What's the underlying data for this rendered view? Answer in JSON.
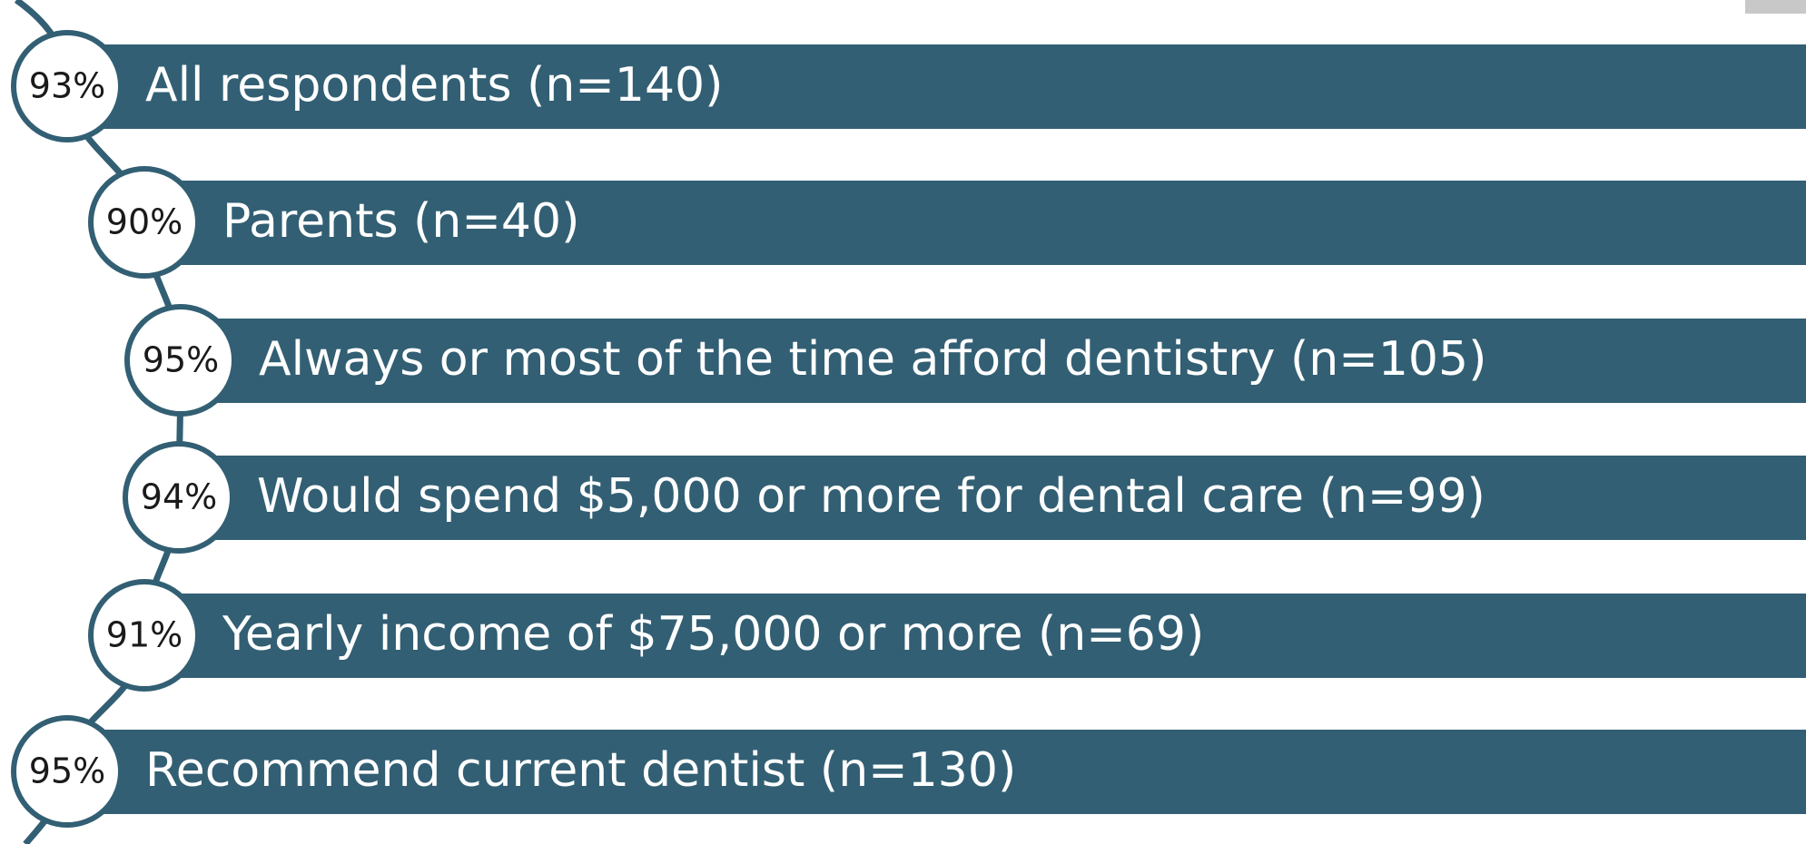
{
  "items": [
    {
      "percent": "93%",
      "label": "All respondents (n=140)"
    },
    {
      "percent": "90%",
      "label": "Parents (n=40)"
    },
    {
      "percent": "95%",
      "label": "Always or most of the time afford dentistry (n=105)"
    },
    {
      "percent": "94%",
      "label": "Would spend $5,000 or more for dental care (n=99)"
    },
    {
      "percent": "91%",
      "label": "Yearly income of $75,000 or more (n=69)"
    },
    {
      "percent": "95%",
      "label": "Recommend current dentist (n=130)"
    }
  ]
}
